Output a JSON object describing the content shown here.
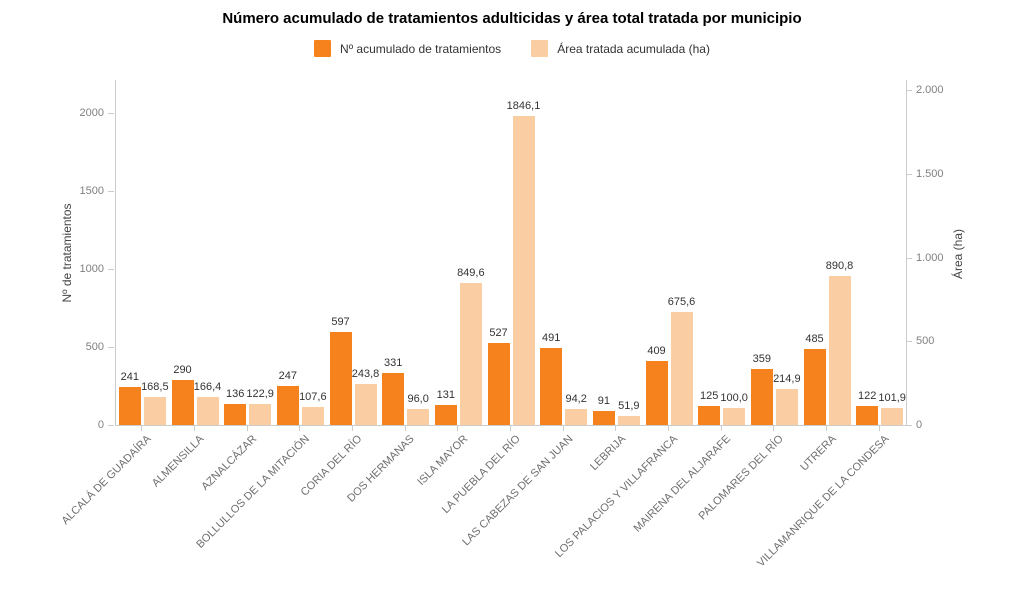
{
  "title": "Número acumulado de tratamientos adulticidas y área total tratada por municipio",
  "legend": {
    "items": [
      {
        "label": "Nº acumulado de tratamientos",
        "color": "#F6821E"
      },
      {
        "label": "Área tratada acumulada (ha)",
        "color": "#FACDA3"
      }
    ]
  },
  "chart_data": {
    "type": "bar",
    "title": "Número acumulado de tratamientos adulticidas y área total tratada por municipio",
    "categories": [
      "ALCALÁ DE GUADAÍRA",
      "ALMENSILLA",
      "AZNALCÁZAR",
      "BOLLULLOS DE LA MITACIÓN",
      "CORIA DEL RÍO",
      "DOS HERMANAS",
      "ISLA MAYOR",
      "LA PUEBLA DEL RÍO",
      "LAS CABEZAS DE SAN JUAN",
      "LEBRIJA",
      "LOS PALACIOS Y VILLAFRANCA",
      "MAIRENA DEL ALJARAFE",
      "PALOMARES DEL RÍO",
      "UTRERA",
      "VILLAMANRIQUE DE LA CONDESA"
    ],
    "series": [
      {
        "name": "Nº acumulado de tratamientos",
        "axis": "left",
        "color": "#F6821E",
        "values": [
          241,
          290,
          136,
          247,
          597,
          331,
          131,
          527,
          491,
          91,
          409,
          125,
          359,
          485,
          122
        ],
        "labels": [
          "241",
          "290",
          "136",
          "247",
          "597",
          "331",
          "131",
          "527",
          "491",
          "91",
          "409",
          "125",
          "359",
          "485",
          "122"
        ]
      },
      {
        "name": "Área tratada acumulada (ha)",
        "axis": "right",
        "color": "#FACDA3",
        "values": [
          168.5,
          166.4,
          122.9,
          107.6,
          243.8,
          96.0,
          849.6,
          1846.1,
          94.2,
          51.9,
          675.6,
          100.0,
          214.9,
          890.8,
          101.9
        ],
        "labels": [
          "168,5",
          "166,4",
          "122,9",
          "107,6",
          "243,8",
          "96,0",
          "849,6",
          "1846,1",
          "94,2",
          "51,9",
          "675,6",
          "100,0",
          "214,9",
          "890,8",
          "101,9"
        ]
      }
    ],
    "left_axis": {
      "title": "Nº de tratamientos",
      "ticks": [
        0,
        500,
        1000,
        1500,
        2000
      ],
      "tick_labels": [
        "0",
        "500",
        "1000",
        "1500",
        "2000"
      ],
      "range": [
        0,
        2210
      ]
    },
    "right_axis": {
      "title": "Área (ha)",
      "ticks": [
        0,
        500,
        1000,
        1500,
        2000
      ],
      "tick_labels": [
        "0",
        "500",
        "1.000",
        "1.500",
        "2.000"
      ],
      "range": [
        0,
        2060
      ]
    },
    "grid": false,
    "legend_position": "top"
  }
}
